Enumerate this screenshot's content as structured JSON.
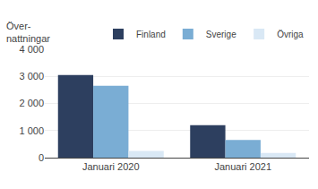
{
  "chart_data": {
    "type": "bar",
    "ylabel": "Över-\nnattningar",
    "categories": [
      "Januari 2020",
      "Januari 2021"
    ],
    "series": [
      {
        "name": "Finland",
        "color": "#2d3f5f",
        "values": [
          3050,
          1200
        ]
      },
      {
        "name": "Sverige",
        "color": "#7aadd4",
        "values": [
          2650,
          650
        ]
      },
      {
        "name": "Övriga",
        "color": "#d9e8f5",
        "values": [
          250,
          175
        ]
      }
    ],
    "ylim": [
      0,
      4000
    ],
    "yticks": [
      0,
      {
        "value": 1000,
        "label": "1 000"
      },
      {
        "value": 2000,
        "label": "2 000"
      },
      {
        "value": 3000,
        "label": "3 000"
      },
      {
        "value": 4000,
        "label": "4 000"
      }
    ],
    "grid": true,
    "legend": "top"
  }
}
